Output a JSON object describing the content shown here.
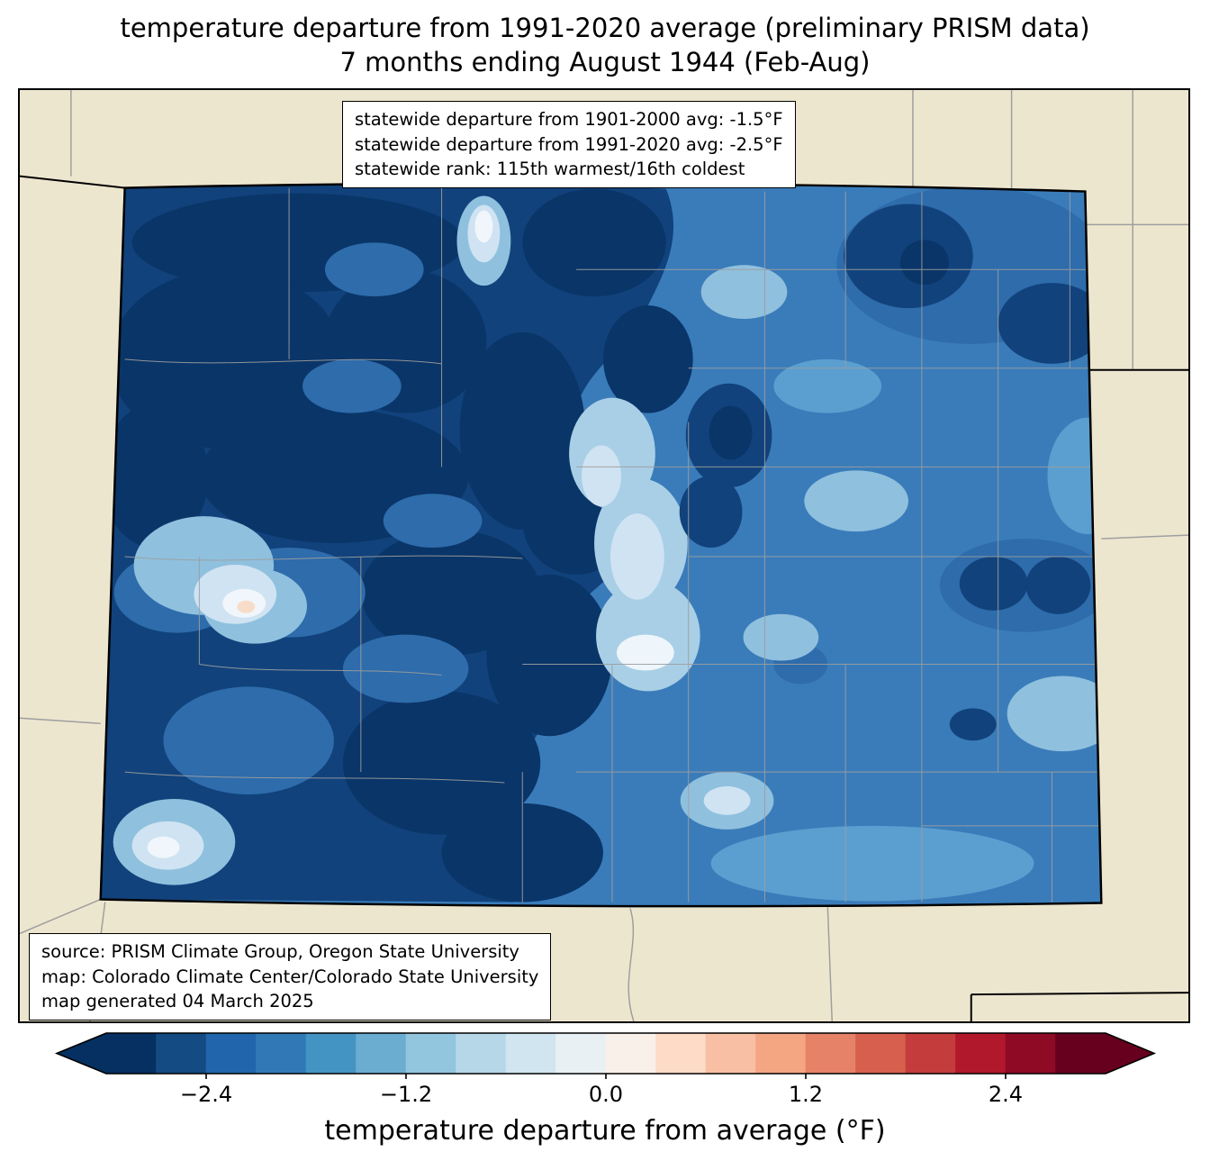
{
  "title": {
    "line1": "temperature departure from 1991-2020 average (preliminary PRISM data)",
    "line2": "7 months ending August 1944 (Feb-Aug)"
  },
  "stats_box": {
    "lines": [
      "statewide departure from 1901-2000 avg: -1.5°F",
      "statewide departure from 1991-2020 avg: -2.5°F",
      "statewide rank: 115th warmest/16th coldest"
    ]
  },
  "source_box": {
    "lines": [
      "source: PRISM Climate Group, Oregon State University",
      "map: Colorado Climate Center/Colorado State University",
      "map generated 04 March 2025"
    ]
  },
  "map": {
    "region": "Colorado",
    "background_color": "#ede6cf",
    "state_border_color": "#000000",
    "county_line_color": "#9e9e9e",
    "dominant_fill": "blues (below-average temperature departures)"
  },
  "colorbar": {
    "label": "temperature departure from average (°F)",
    "ticks": [
      "−2.4",
      "−1.2",
      "0.0",
      "1.2",
      "2.4"
    ],
    "tick_values": [
      -2.4,
      -1.2,
      0.0,
      1.2,
      2.4
    ],
    "range": [
      -3.0,
      3.0
    ],
    "colors": [
      "#053061",
      "#134b82",
      "#2166ac",
      "#3079b6",
      "#4393c3",
      "#6bacd1",
      "#92c5de",
      "#b6d7e8",
      "#d1e5f0",
      "#e8f0f4",
      "#f9f0ea",
      "#fddbc7",
      "#f8bfa4",
      "#f4a582",
      "#e58267",
      "#d6604d",
      "#c43c3c",
      "#b2182b",
      "#8f0a25",
      "#67001f"
    ]
  }
}
